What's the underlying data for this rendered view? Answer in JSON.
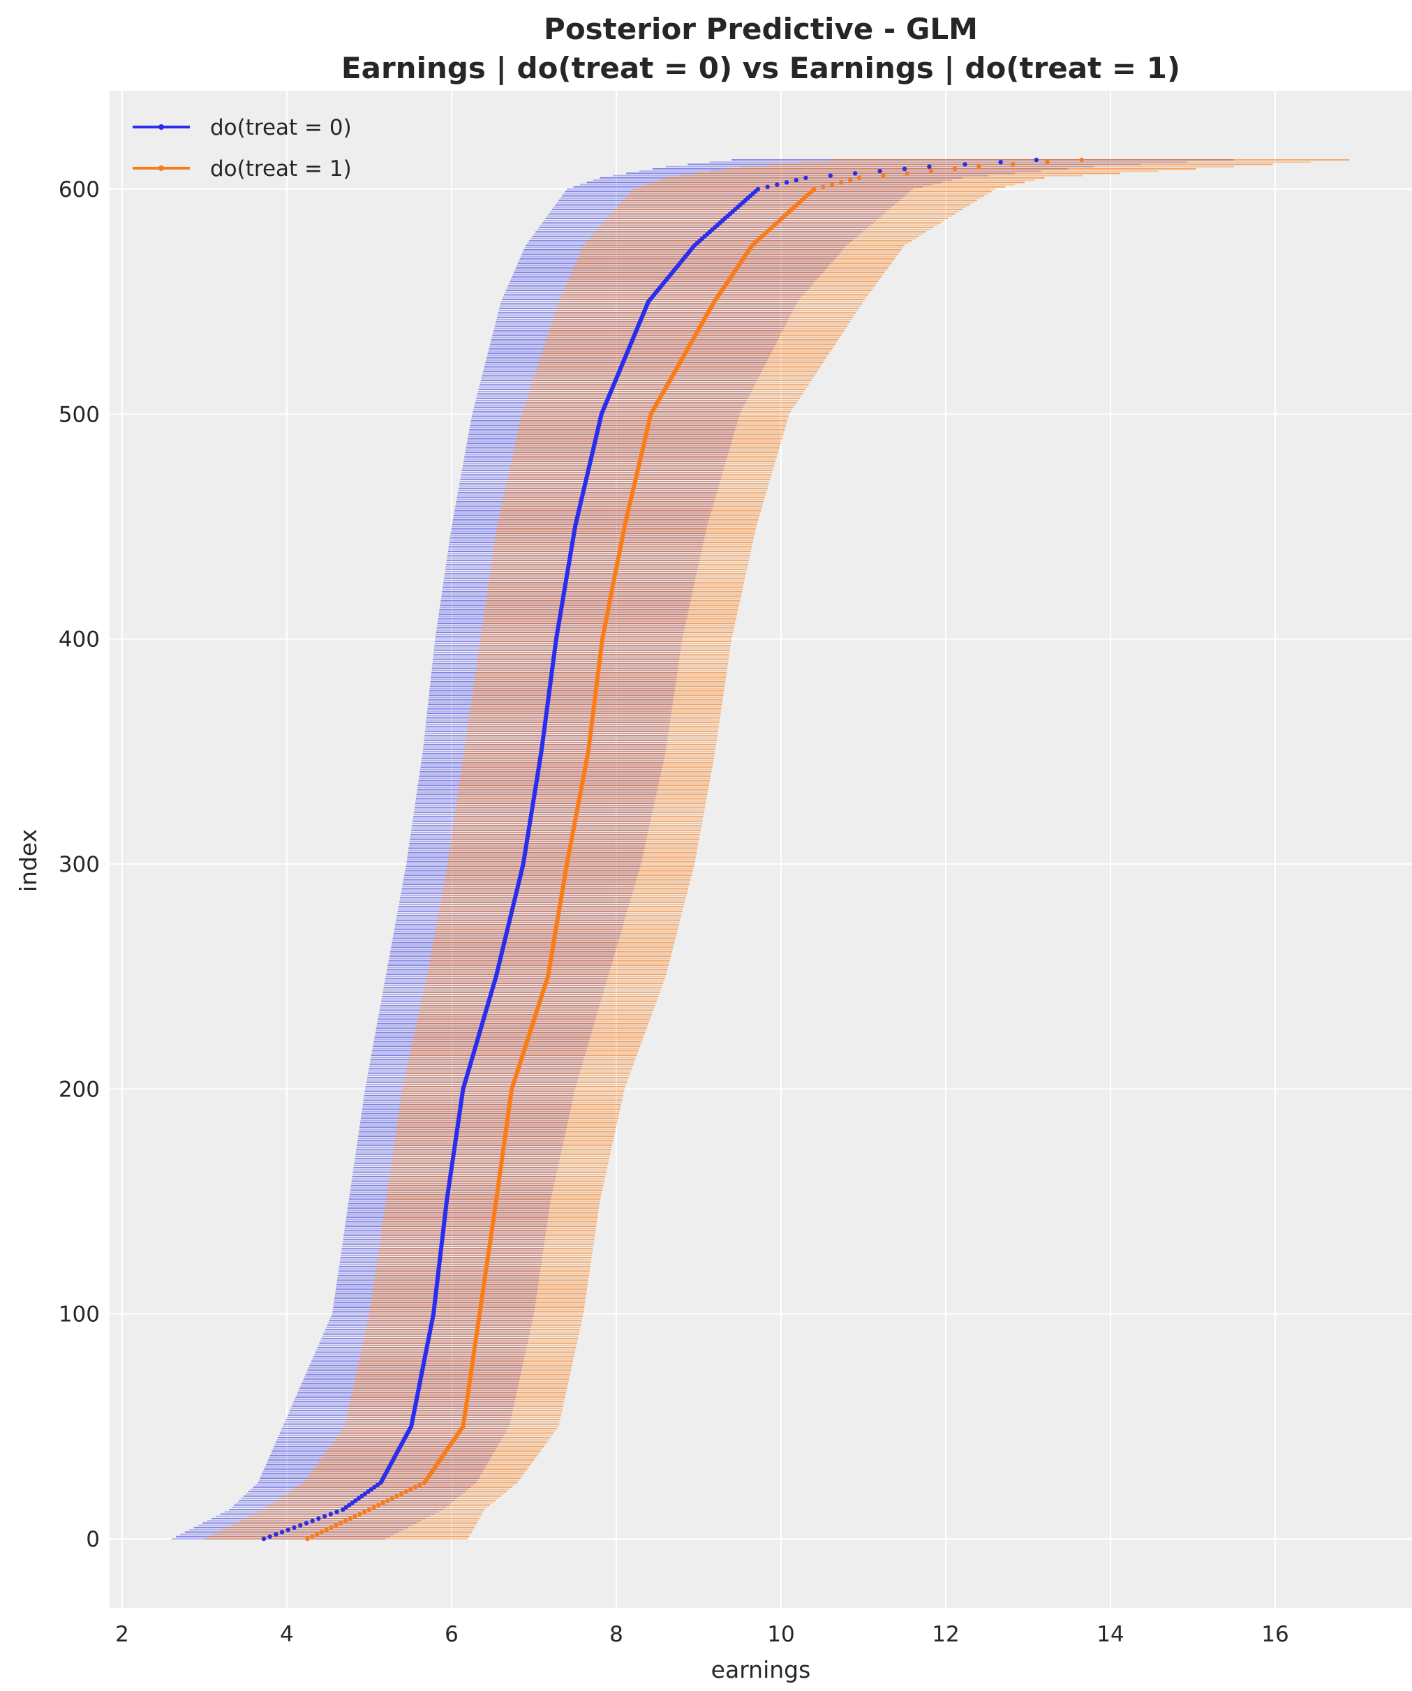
{
  "chart_data": {
    "type": "interval",
    "title": "Posterior Predictive - GLM",
    "subtitle": "Earnings | do(treat = 0) vs Earnings | do(treat = 1)",
    "xlabel": "earnings",
    "ylabel": "index",
    "xlim": [
      1.8,
      17.7
    ],
    "ylim": [
      -30,
      635
    ],
    "xticks": [
      2,
      4,
      6,
      8,
      10,
      12,
      14,
      16
    ],
    "yticks": [
      0,
      100,
      200,
      300,
      400,
      500,
      600
    ],
    "grid": true,
    "legend_position": "top-left",
    "n_rows": 614,
    "knots_index": [
      0,
      13,
      25,
      50,
      100,
      150,
      200,
      250,
      300,
      350,
      400,
      450,
      500,
      550,
      575,
      600,
      605,
      610,
      613
    ],
    "series": [
      {
        "name": "do(treat = 0)",
        "color": "#2a2eec",
        "mean": [
          3.72,
          4.68,
          5.14,
          5.51,
          5.78,
          5.94,
          6.14,
          6.54,
          6.87,
          7.09,
          7.27,
          7.5,
          7.82,
          8.39,
          8.95,
          9.72,
          10.3,
          11.8,
          13.1
        ],
        "hdi_low": [
          2.6,
          3.3,
          3.65,
          3.95,
          4.55,
          4.75,
          4.95,
          5.2,
          5.45,
          5.65,
          5.8,
          6.0,
          6.25,
          6.6,
          6.9,
          7.4,
          7.8,
          8.6,
          9.4
        ],
        "hdi_high": [
          5.2,
          5.9,
          6.3,
          6.7,
          7.0,
          7.2,
          7.5,
          7.9,
          8.3,
          8.6,
          8.8,
          9.1,
          9.5,
          10.2,
          10.8,
          11.6,
          12.2,
          13.8,
          15.5
        ]
      },
      {
        "name": "do(treat = 1)",
        "color": "#fa7c17",
        "mean": [
          4.25,
          5.0,
          5.67,
          6.14,
          6.34,
          6.54,
          6.73,
          7.17,
          7.4,
          7.66,
          7.83,
          8.1,
          8.42,
          9.19,
          9.65,
          10.4,
          10.95,
          12.4,
          13.65
        ],
        "hdi_low": [
          3.0,
          3.7,
          4.2,
          4.7,
          5.0,
          5.2,
          5.4,
          5.7,
          5.95,
          6.15,
          6.35,
          6.55,
          6.85,
          7.3,
          7.6,
          8.2,
          8.6,
          9.5,
          10.6
        ],
        "hdi_high": [
          6.2,
          6.4,
          6.8,
          7.3,
          7.6,
          7.8,
          8.1,
          8.6,
          8.95,
          9.2,
          9.4,
          9.7,
          10.1,
          11.0,
          11.5,
          12.6,
          13.2,
          15.5,
          16.9
        ]
      }
    ]
  }
}
